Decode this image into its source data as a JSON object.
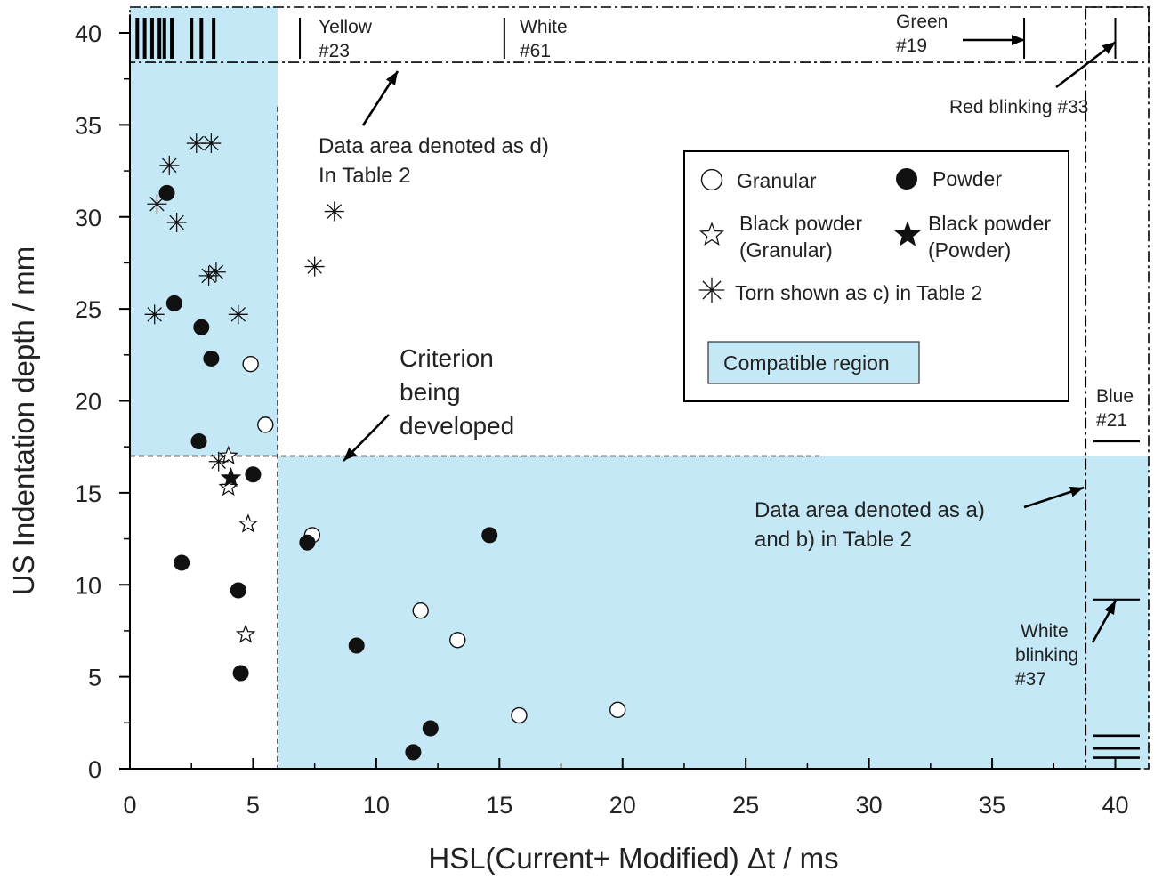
{
  "chart_data": {
    "type": "scatter",
    "xlabel": "HSL(Current+  Modified) Δt / ms",
    "ylabel": "US Indentation depth   / mm",
    "xlim": [
      0,
      41
    ],
    "ylim": [
      0,
      41
    ],
    "x_ticks": [
      0,
      5,
      10,
      15,
      20,
      25,
      30,
      35,
      40
    ],
    "y_ticks": [
      0,
      5,
      10,
      15,
      20,
      25,
      30,
      35,
      40
    ],
    "grid": false,
    "legend_position": "top-right",
    "thresholds": {
      "x": 6.0,
      "y": 17.0
    },
    "compatible_region_label": "Compatible region",
    "series": [
      {
        "name": "Granular",
        "marker": "circle-open",
        "points": [
          [
            4.9,
            22.0
          ],
          [
            5.5,
            18.7
          ],
          [
            7.4,
            12.7
          ],
          [
            11.8,
            8.6
          ],
          [
            13.3,
            7.0
          ],
          [
            15.8,
            2.9
          ],
          [
            19.8,
            3.2
          ]
        ]
      },
      {
        "name": "Powder",
        "marker": "circle-filled",
        "points": [
          [
            1.5,
            31.3
          ],
          [
            1.8,
            25.3
          ],
          [
            2.9,
            24.0
          ],
          [
            3.3,
            22.3
          ],
          [
            2.8,
            17.8
          ],
          [
            5.0,
            16.0
          ],
          [
            2.1,
            11.2
          ],
          [
            4.4,
            9.7
          ],
          [
            4.5,
            5.2
          ],
          [
            7.2,
            12.3
          ],
          [
            9.2,
            6.7
          ],
          [
            14.6,
            12.7
          ],
          [
            11.5,
            0.9
          ],
          [
            12.2,
            2.2
          ]
        ]
      },
      {
        "name": "Black powder (Granular)",
        "marker": "star-open",
        "points": [
          [
            4.0,
            17.0
          ],
          [
            4.0,
            15.3
          ],
          [
            4.8,
            13.3
          ],
          [
            4.7,
            7.3
          ]
        ]
      },
      {
        "name": "Black powder (Powder)",
        "marker": "star-filled",
        "points": [
          [
            4.1,
            15.8
          ]
        ]
      },
      {
        "name": "Torn  shown as  c) in Table 2",
        "marker": "asterisk",
        "points": [
          [
            2.7,
            34.0
          ],
          [
            3.3,
            34.0
          ],
          [
            1.6,
            32.8
          ],
          [
            1.1,
            30.7
          ],
          [
            1.9,
            29.7
          ],
          [
            3.2,
            26.8
          ],
          [
            3.5,
            27.0
          ],
          [
            1.0,
            24.7
          ],
          [
            4.4,
            24.7
          ],
          [
            3.6,
            16.7
          ],
          [
            7.5,
            27.3
          ],
          [
            8.3,
            30.3
          ]
        ]
      }
    ],
    "rug_ticks": {
      "blue_region": [
        0.3,
        0.6,
        0.9,
        1.2,
        1.4,
        1.7,
        2.5,
        2.9,
        3.4
      ],
      "yellow": 6.9,
      "white": 15.2,
      "green": 36.3,
      "red_blinking": 40.0,
      "blue": 40.0,
      "white_blinking": 40.0,
      "bottom_marks": [
        0.6,
        1.1,
        1.8
      ]
    },
    "annotations": {
      "yellow": [
        "Yellow",
        "#23"
      ],
      "white": [
        "White",
        "#61"
      ],
      "green": [
        "Green",
        "#19"
      ],
      "red_blinking": "Red blinking #33",
      "area_d": [
        "Data area denoted as d)",
        "In Table 2"
      ],
      "criterion": [
        "Criterion",
        "being",
        "developed"
      ],
      "area_ab": [
        "Data area denoted as a)",
        "and b) in Table 2"
      ],
      "blue": [
        "Blue",
        "#21"
      ],
      "white_blinking": [
        "White",
        "blinking",
        "#37"
      ]
    },
    "legend": [
      {
        "label": "Granular",
        "marker": "circle-open"
      },
      {
        "label": "Powder",
        "marker": "circle-filled"
      },
      {
        "label": "Black powder\n(Granular)",
        "marker": "star-open"
      },
      {
        "label": "Black powder\n(Powder)",
        "marker": "star-filled"
      },
      {
        "label": "Torn  shown as  c) in Table 2",
        "marker": "asterisk"
      }
    ]
  },
  "colors": {
    "region_fill": "#c5e8f7",
    "axis": "#000000",
    "marker": "#111111"
  }
}
